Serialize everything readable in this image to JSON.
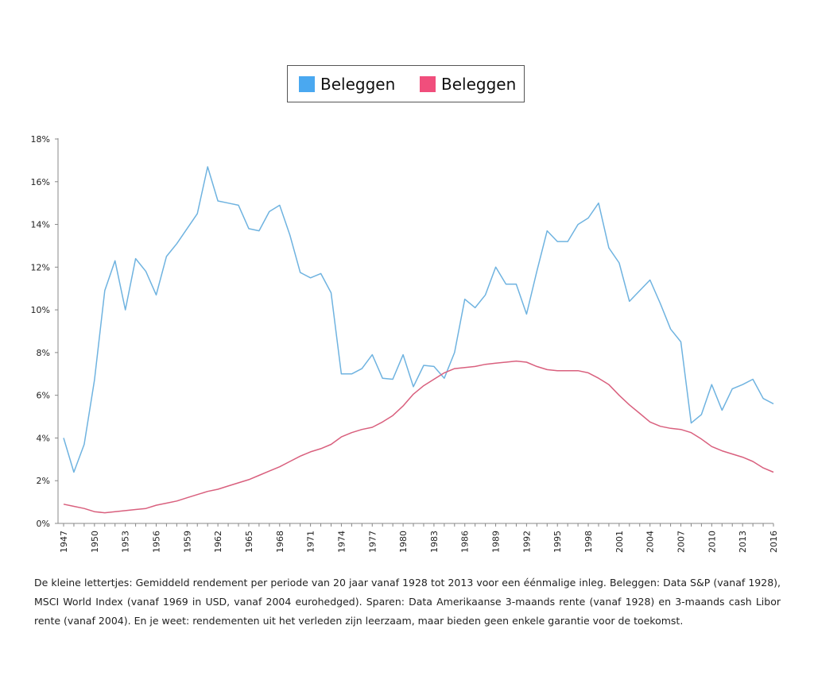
{
  "legend": {
    "items": [
      {
        "label": "Beleggen",
        "color": "#4aa8f0"
      },
      {
        "label": "Beleggen",
        "color": "#f04e7c"
      }
    ]
  },
  "chart_data": {
    "type": "line",
    "title": "",
    "xlabel": "",
    "ylabel": "",
    "ylim": [
      0,
      18
    ],
    "y_ticks": [
      "0%",
      "2%",
      "4%",
      "6%",
      "8%",
      "10%",
      "12%",
      "14%",
      "16%",
      "18%"
    ],
    "x_ticks": [
      "1947",
      "1950",
      "1953",
      "1956",
      "1959",
      "1962",
      "1965",
      "1968",
      "1971",
      "1974",
      "1977",
      "1980",
      "1983",
      "1986",
      "1989",
      "1992",
      "1995",
      "1998",
      "2001",
      "2004",
      "2007",
      "2010",
      "2013",
      "2016"
    ],
    "x": [
      1947,
      1948,
      1949,
      1950,
      1951,
      1952,
      1953,
      1954,
      1955,
      1956,
      1957,
      1958,
      1959,
      1960,
      1961,
      1962,
      1963,
      1964,
      1965,
      1966,
      1967,
      1968,
      1969,
      1970,
      1971,
      1972,
      1973,
      1974,
      1975,
      1976,
      1977,
      1978,
      1979,
      1980,
      1981,
      1982,
      1983,
      1984,
      1985,
      1986,
      1987,
      1988,
      1989,
      1990,
      1991,
      1992,
      1993,
      1994,
      1995,
      1996,
      1997,
      1998,
      1999,
      2000,
      2001,
      2002,
      2003,
      2004,
      2005,
      2006,
      2007,
      2008,
      2009,
      2010,
      2011,
      2012,
      2013,
      2014,
      2015,
      2016
    ],
    "series": [
      {
        "name": "Beleggen",
        "color": "#6fb3e0",
        "values": [
          4.0,
          2.4,
          3.7,
          6.7,
          10.9,
          12.3,
          10.0,
          12.4,
          11.8,
          10.7,
          12.5,
          13.1,
          13.8,
          14.5,
          16.7,
          15.1,
          15.0,
          14.9,
          13.8,
          13.7,
          14.6,
          14.9,
          13.5,
          11.75,
          11.5,
          11.7,
          10.8,
          7.0,
          7.0,
          7.25,
          7.9,
          6.8,
          6.75,
          7.9,
          6.4,
          7.4,
          7.35,
          6.8,
          8.0,
          10.5,
          10.1,
          10.7,
          12.0,
          11.2,
          11.2,
          9.8,
          11.8,
          13.7,
          13.2,
          13.2,
          14.0,
          14.3,
          15.0,
          12.9,
          12.2,
          10.4,
          10.9,
          11.4,
          10.3,
          9.1,
          8.5,
          4.7,
          5.1,
          6.5,
          5.3,
          6.3,
          6.5,
          6.75,
          5.85,
          5.6
        ]
      },
      {
        "name": "Beleggen",
        "color": "#d9607e",
        "values": [
          0.9,
          0.8,
          0.7,
          0.55,
          0.5,
          0.55,
          0.6,
          0.65,
          0.7,
          0.85,
          0.95,
          1.05,
          1.2,
          1.35,
          1.5,
          1.6,
          1.75,
          1.9,
          2.05,
          2.25,
          2.45,
          2.65,
          2.9,
          3.15,
          3.35,
          3.5,
          3.7,
          4.05,
          4.25,
          4.4,
          4.5,
          4.75,
          5.05,
          5.5,
          6.05,
          6.45,
          6.75,
          7.05,
          7.25,
          7.3,
          7.35,
          7.45,
          7.5,
          7.55,
          7.6,
          7.55,
          7.35,
          7.2,
          7.15,
          7.15,
          7.15,
          7.05,
          6.8,
          6.5,
          6.0,
          5.55,
          5.15,
          4.75,
          4.55,
          4.45,
          4.4,
          4.25,
          3.95,
          3.6,
          3.4,
          3.25,
          3.1,
          2.9,
          2.6,
          2.4
        ]
      }
    ]
  },
  "footnote": "De kleine lettertjes: Gemiddeld rendement per periode van 20 jaar vanaf 1928 tot 2013 voor een éénmalige inleg. Beleggen: Data S&P (vanaf 1928), MSCI World Index (vanaf 1969 in USD, vanaf 2004 eurohedged). Sparen: Data Amerikaanse 3-maands rente (vanaf 1928) en 3-maands cash Libor rente (vanaf 2004). En je weet: rendementen uit het verleden zijn leerzaam, maar bieden geen enkele garantie voor de toekomst."
}
